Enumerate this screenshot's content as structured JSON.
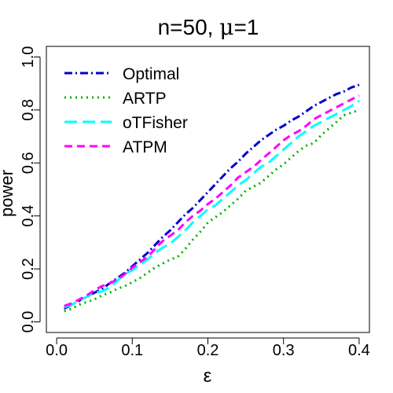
{
  "chart_data": {
    "type": "line",
    "title_main": "n=50, ",
    "title_symbol": "μ",
    "title_rest": "=1",
    "xlabel": "ε",
    "ylabel": "power",
    "xlim": [
      0,
      0.4
    ],
    "ylim": [
      0,
      1.0
    ],
    "xticks": [
      0.0,
      0.1,
      0.2,
      0.3,
      0.4
    ],
    "xtick_labels": [
      "0.0",
      "0.1",
      "0.2",
      "0.3",
      "0.4"
    ],
    "yticks": [
      0.0,
      0.2,
      0.4,
      0.6,
      0.8,
      1.0
    ],
    "ytick_labels": [
      "0.0",
      "0.2",
      "0.4",
      "0.6",
      "0.8",
      "1.0"
    ],
    "grid": false,
    "legend_position": "top-left",
    "x": [
      0.01,
      0.02,
      0.03,
      0.04,
      0.05,
      0.06,
      0.07,
      0.08,
      0.09,
      0.1,
      0.11,
      0.12,
      0.13,
      0.14,
      0.15,
      0.16,
      0.17,
      0.18,
      0.19,
      0.2,
      0.21,
      0.22,
      0.23,
      0.24,
      0.25,
      0.26,
      0.27,
      0.28,
      0.29,
      0.3,
      0.31,
      0.32,
      0.33,
      0.34,
      0.35,
      0.36,
      0.37,
      0.38,
      0.39,
      0.4
    ],
    "series": [
      {
        "name": "Optimal",
        "color": "#0000CD",
        "dash": "dotdash",
        "values": [
          0.05,
          0.065,
          0.08,
          0.095,
          0.11,
          0.125,
          0.145,
          0.165,
          0.185,
          0.21,
          0.235,
          0.26,
          0.29,
          0.32,
          0.345,
          0.375,
          0.405,
          0.43,
          0.46,
          0.49,
          0.52,
          0.55,
          0.58,
          0.605,
          0.635,
          0.66,
          0.685,
          0.705,
          0.725,
          0.74,
          0.76,
          0.775,
          0.795,
          0.815,
          0.83,
          0.845,
          0.86,
          0.87,
          0.885,
          0.895
        ]
      },
      {
        "name": "ARTP",
        "color": "#00B000",
        "dash": "dotted",
        "values": [
          0.04,
          0.05,
          0.065,
          0.075,
          0.085,
          0.1,
          0.11,
          0.125,
          0.135,
          0.15,
          0.165,
          0.185,
          0.205,
          0.22,
          0.235,
          0.245,
          0.275,
          0.31,
          0.34,
          0.375,
          0.395,
          0.415,
          0.44,
          0.465,
          0.495,
          0.51,
          0.525,
          0.55,
          0.575,
          0.595,
          0.62,
          0.645,
          0.665,
          0.675,
          0.705,
          0.73,
          0.755,
          0.78,
          0.79,
          0.8
        ]
      },
      {
        "name": "oTFisher",
        "color": "#00FFFF",
        "dash": "longdash",
        "values": [
          0.055,
          0.065,
          0.08,
          0.095,
          0.11,
          0.115,
          0.13,
          0.155,
          0.18,
          0.195,
          0.215,
          0.235,
          0.26,
          0.28,
          0.295,
          0.32,
          0.345,
          0.375,
          0.4,
          0.425,
          0.44,
          0.465,
          0.49,
          0.515,
          0.535,
          0.56,
          0.585,
          0.6,
          0.625,
          0.65,
          0.675,
          0.7,
          0.72,
          0.74,
          0.755,
          0.77,
          0.785,
          0.8,
          0.815,
          0.835
        ]
      },
      {
        "name": "ATPM",
        "color": "#FF00FF",
        "dash": "dashed",
        "values": [
          0.06,
          0.07,
          0.085,
          0.1,
          0.12,
          0.135,
          0.145,
          0.16,
          0.18,
          0.205,
          0.225,
          0.245,
          0.275,
          0.305,
          0.325,
          0.345,
          0.375,
          0.4,
          0.42,
          0.445,
          0.465,
          0.49,
          0.515,
          0.545,
          0.565,
          0.585,
          0.61,
          0.635,
          0.66,
          0.685,
          0.705,
          0.72,
          0.74,
          0.765,
          0.78,
          0.795,
          0.81,
          0.825,
          0.84,
          0.855
        ]
      }
    ]
  }
}
